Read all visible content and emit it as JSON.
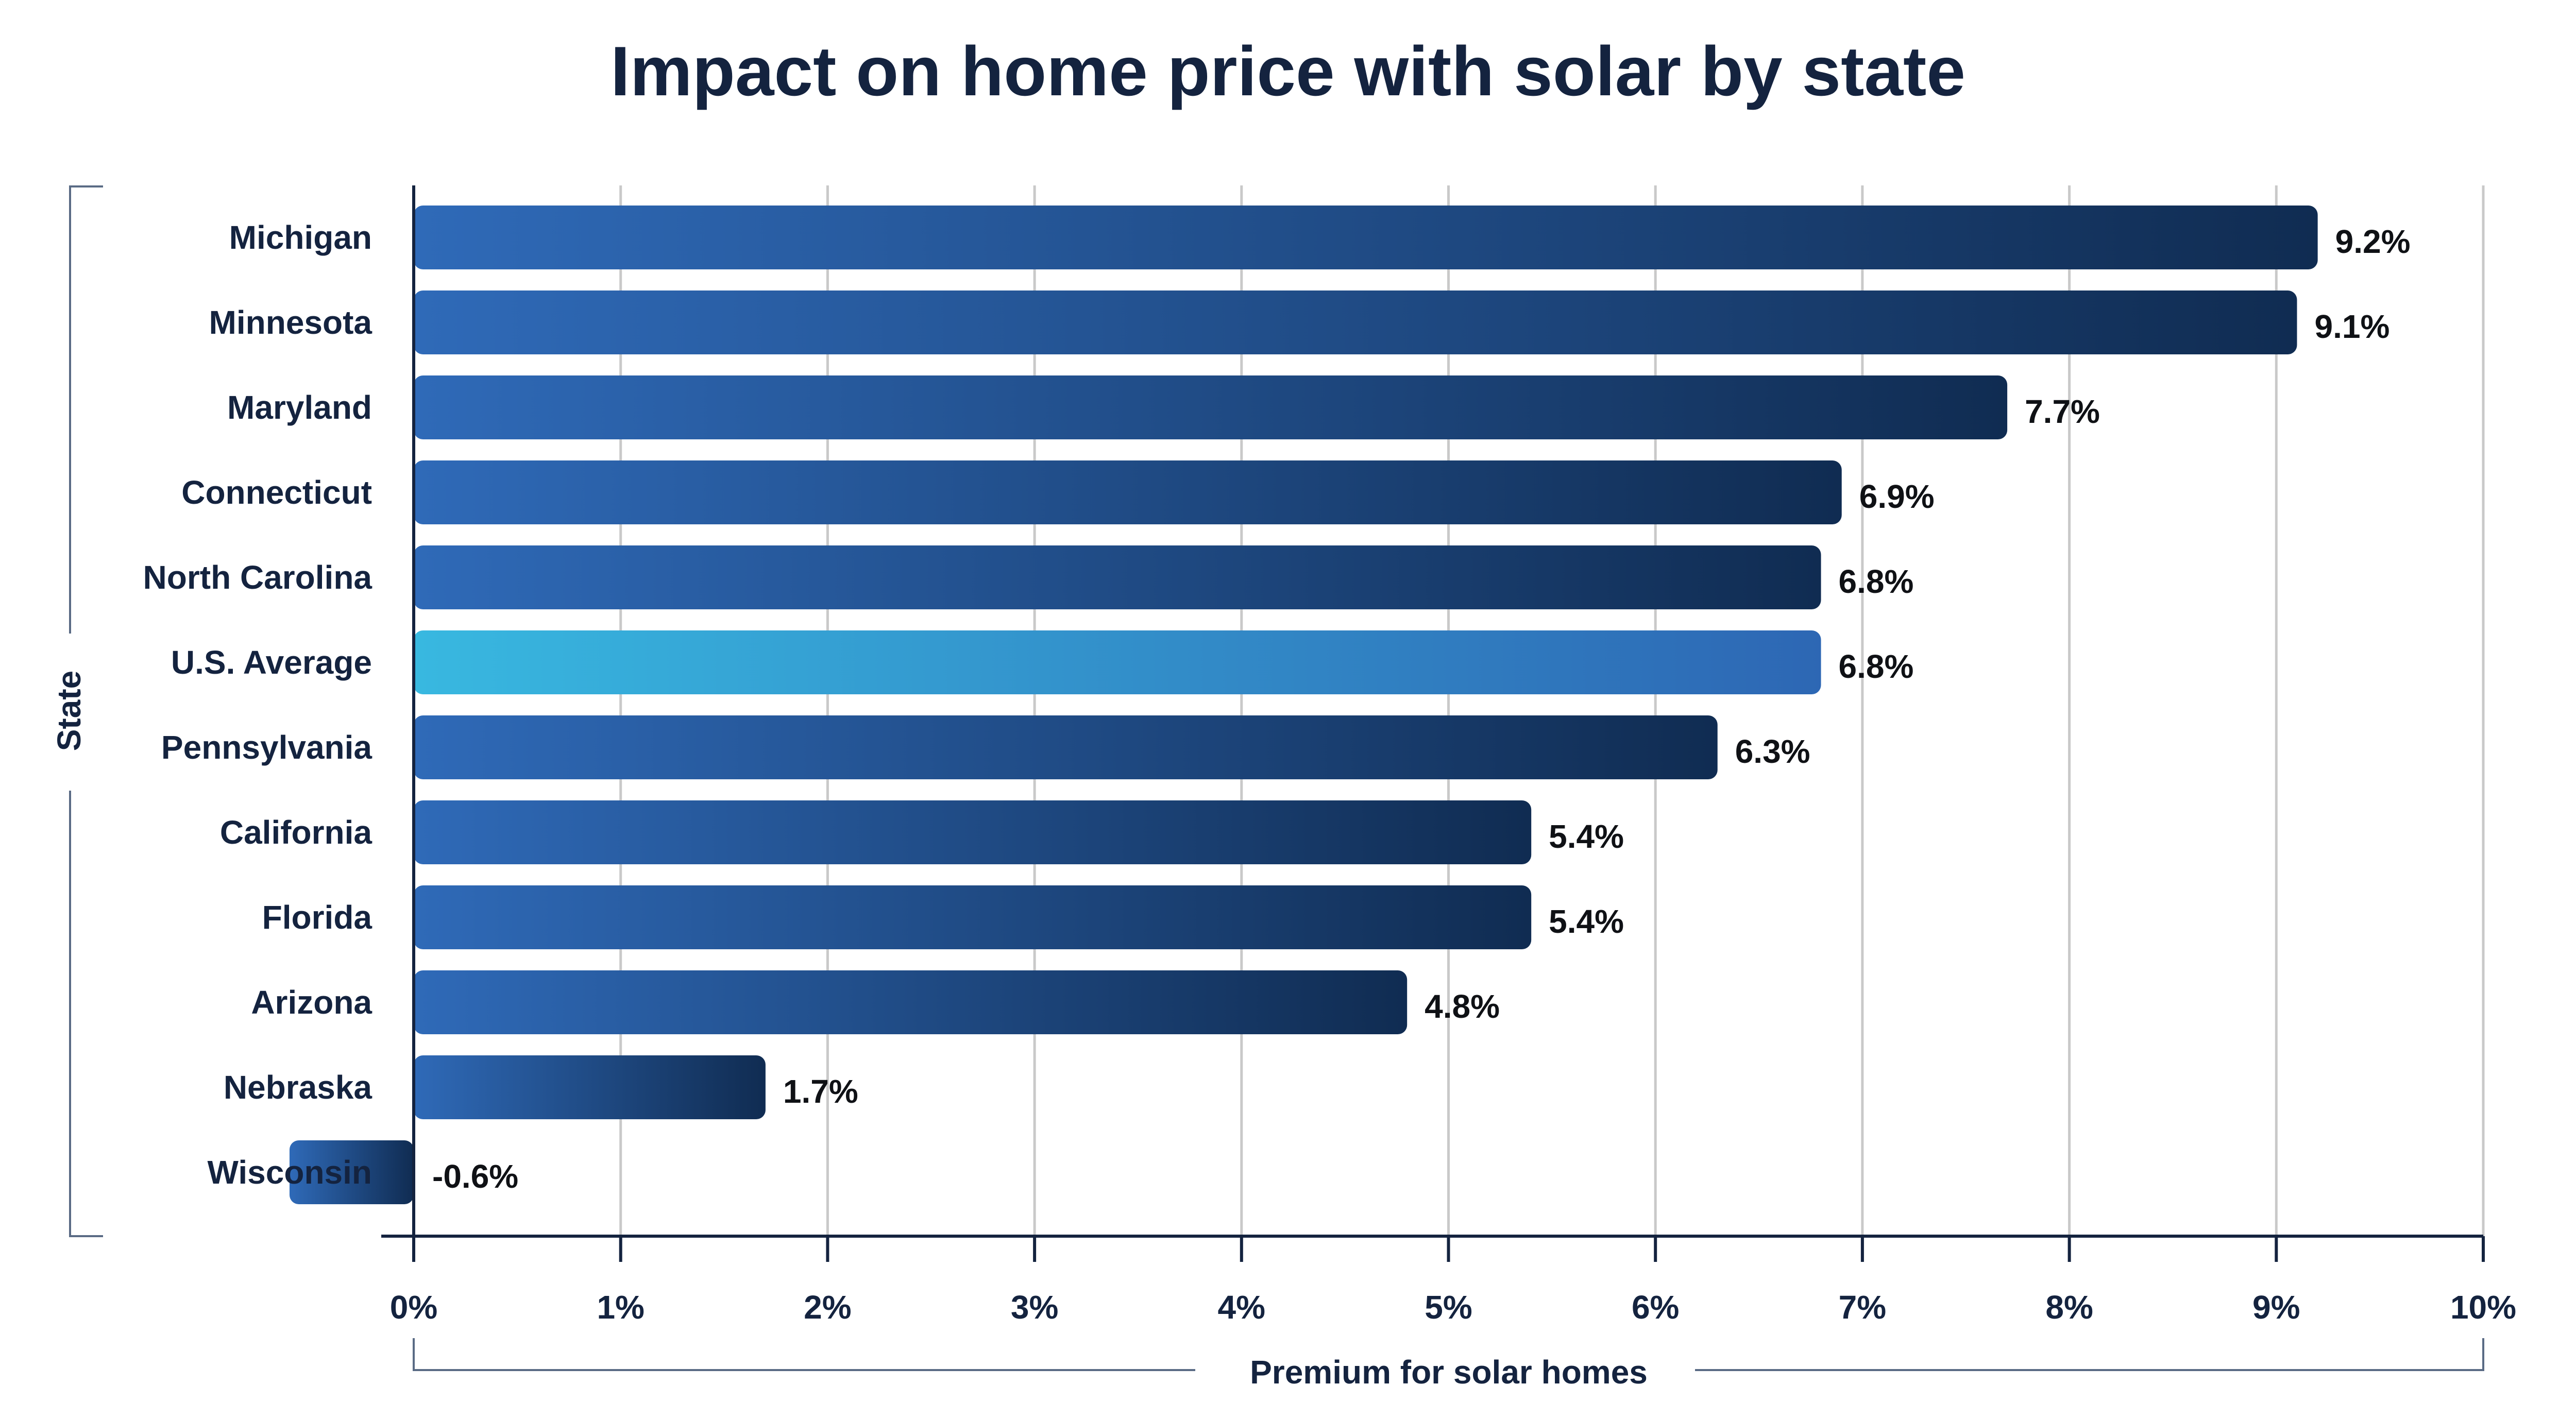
{
  "chart_data": {
    "type": "bar",
    "orientation": "horizontal",
    "title": "Impact on home price with solar by state",
    "xlabel": "Premium for solar homes",
    "ylabel": "State",
    "categories": [
      "Michigan",
      "Minnesota",
      "Maryland",
      "Connecticut",
      "North Carolina",
      "U.S. Average",
      "Pennsylvania",
      "California",
      "Florida",
      "Arizona",
      "Nebraska",
      "Wisconsin"
    ],
    "values": [
      9.2,
      9.1,
      7.7,
      6.9,
      6.8,
      6.8,
      6.3,
      5.4,
      5.4,
      4.8,
      1.7,
      -0.6
    ],
    "value_labels": [
      "9.2%",
      "9.1%",
      "7.7%",
      "6.9%",
      "6.8%",
      "6.8%",
      "6.3%",
      "5.4%",
      "5.4%",
      "4.8%",
      "1.7%",
      "-0.6%"
    ],
    "highlight": "U.S. Average",
    "xlim": [
      0,
      10
    ],
    "ticks": [
      0,
      1,
      2,
      3,
      4,
      5,
      6,
      7,
      8,
      9,
      10
    ],
    "tick_labels": [
      "0%",
      "1%",
      "2%",
      "3%",
      "4%",
      "5%",
      "6%",
      "7%",
      "8%",
      "9%",
      "10%"
    ],
    "grid": true,
    "colors": {
      "bar_start": "#2f6ab8",
      "bar_end": "#102c52",
      "highlight_start": "#38b8e0",
      "highlight_end": "#2d67b4",
      "text": "#14233f",
      "grid": "#c9c9c9",
      "axis": "#14233f"
    }
  }
}
